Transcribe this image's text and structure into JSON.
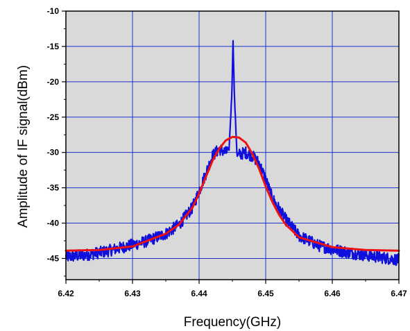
{
  "chart_data": {
    "type": "line",
    "title": "",
    "xlabel": "Frequency(GHz)",
    "ylabel": "Amplitude of IF signal(dBm)",
    "xlim": [
      6.42,
      6.47
    ],
    "ylim": [
      -48,
      -10
    ],
    "xticks": [
      6.42,
      6.43,
      6.44,
      6.45,
      6.46,
      6.47
    ],
    "xtick_labels": [
      "6.42",
      "6.43",
      "6.44",
      "6.45",
      "6.46",
      "6.47"
    ],
    "yticks": [
      -45,
      -40,
      -35,
      -30,
      -25,
      -20,
      -15,
      -10
    ],
    "ytick_labels": [
      "-45",
      "-40",
      "-35",
      "-30",
      "-25",
      "-20",
      "-15",
      "-10"
    ],
    "grid": true,
    "background_color": "#d9d9d9",
    "grid_color": "#1a33cc",
    "series": [
      {
        "color": "#1010dd",
        "style": "noisy-measurement",
        "x": [
          6.42,
          6.423,
          6.426,
          6.429,
          6.432,
          6.435,
          6.437,
          6.439,
          6.44,
          6.441,
          6.442,
          6.443,
          6.444,
          6.4445,
          6.4449,
          6.4451,
          6.4453,
          6.4457,
          6.446,
          6.447,
          6.448,
          6.449,
          6.45,
          6.451,
          6.453,
          6.455,
          6.458,
          6.461,
          6.464,
          6.467,
          6.47
        ],
        "y": [
          -44.8,
          -44.5,
          -44.0,
          -43.3,
          -42.6,
          -41.5,
          -40.2,
          -37.8,
          -35.5,
          -33.0,
          -30.5,
          -29.5,
          -30.0,
          -29.5,
          -22.0,
          -14.2,
          -22.0,
          -30.5,
          -30.3,
          -30.0,
          -30.5,
          -31.5,
          -33.8,
          -36.5,
          -39.5,
          -41.8,
          -43.2,
          -43.9,
          -44.4,
          -44.8,
          -45.2
        ]
      },
      {
        "color": "#ee1111",
        "style": "fit",
        "x": [
          6.42,
          6.425,
          6.43,
          6.435,
          6.437,
          6.439,
          6.44,
          6.441,
          6.442,
          6.443,
          6.444,
          6.445,
          6.446,
          6.447,
          6.448,
          6.449,
          6.45,
          6.451,
          6.452,
          6.453,
          6.455,
          6.46,
          6.465,
          6.47
        ],
        "y": [
          -43.9,
          -43.8,
          -43.3,
          -41.5,
          -40.2,
          -37.8,
          -35.8,
          -33.5,
          -31.2,
          -29.5,
          -28.3,
          -27.8,
          -27.9,
          -28.6,
          -30.2,
          -32.3,
          -34.8,
          -37.0,
          -38.8,
          -40.2,
          -42.0,
          -43.4,
          -43.8,
          -43.9
        ]
      }
    ]
  }
}
